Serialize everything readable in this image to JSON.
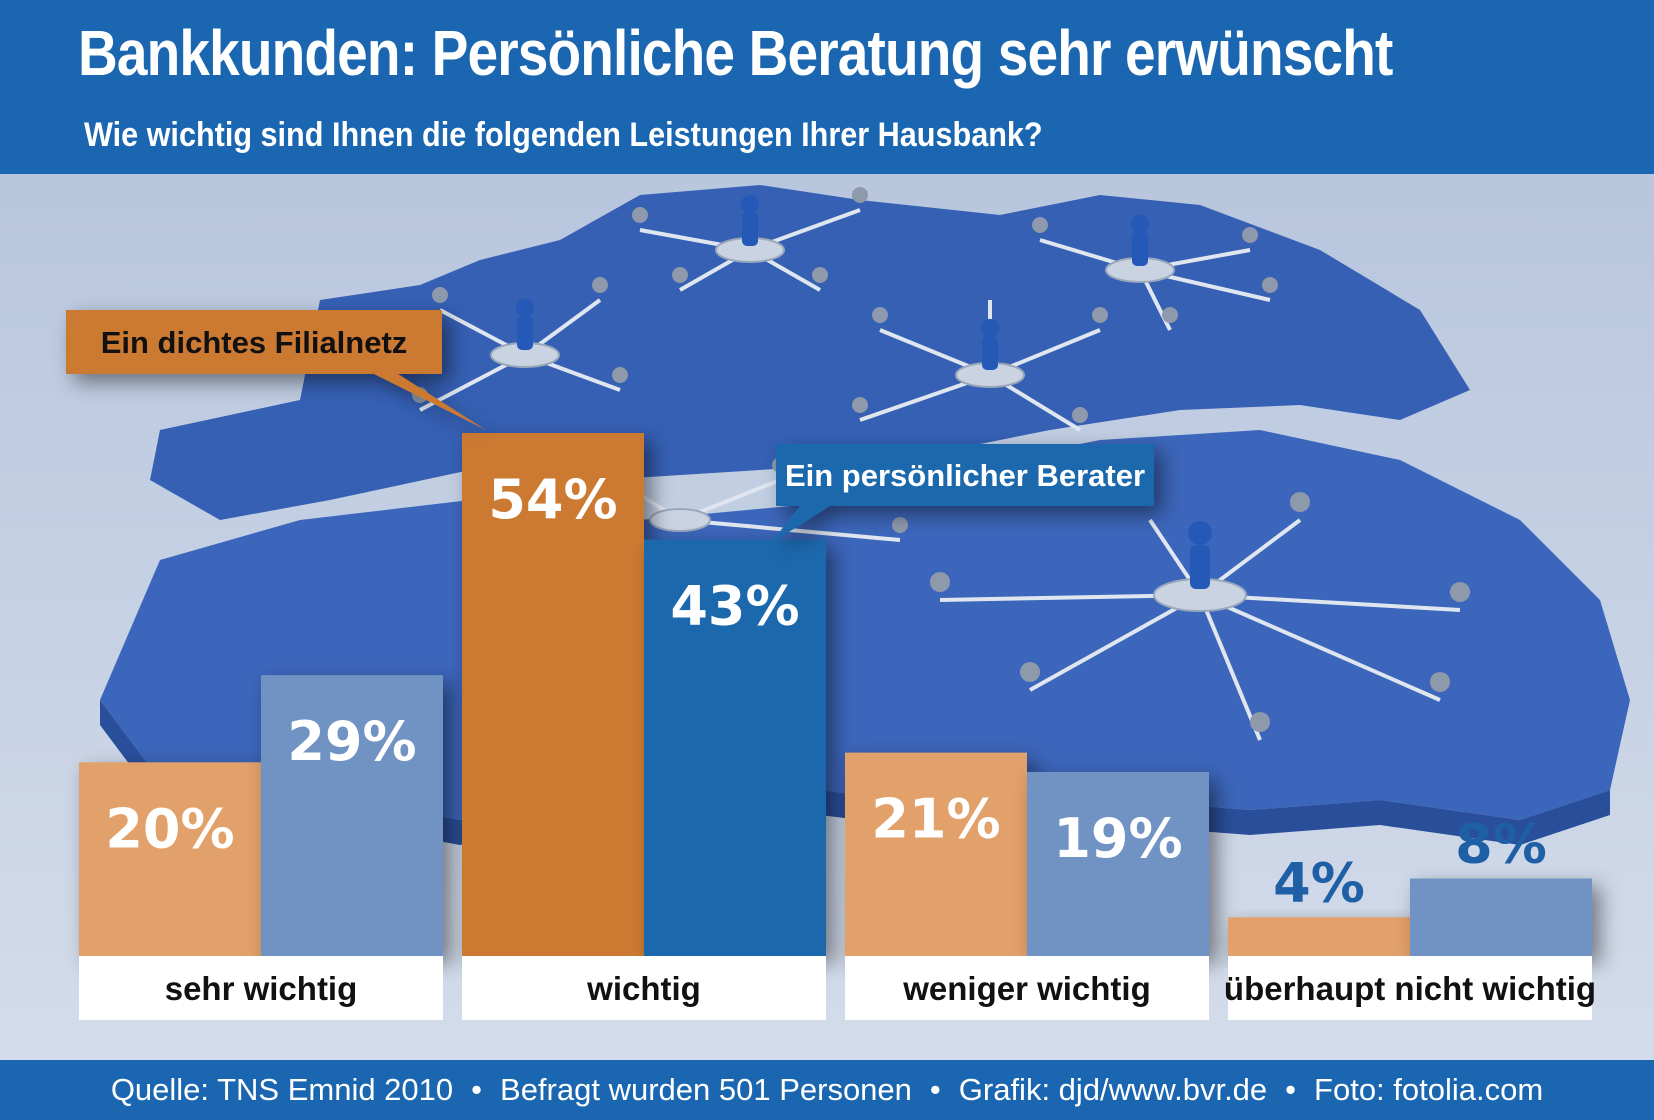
{
  "header": {
    "title": "Bankkunden: Persönliche Beratung sehr erwünscht",
    "subtitle": "Wie wichtig sind Ihnen die folgenden Leistungen Ihrer Hausbank?"
  },
  "footer": {
    "source": "Quelle: TNS Emnid 2010",
    "respondents": "Befragt wurden 501 Personen",
    "graphic": "Grafik: djd/www.bvr.de",
    "photo": "Foto: fotolia.com"
  },
  "colors": {
    "header_blue": "#1b66b0",
    "orange_strong": "#cc7a30",
    "orange_light": "#e2a06a",
    "blue_strong": "#1e68ad",
    "blue_light": "#6f93c4",
    "value_blue_text": "#1e5fa6",
    "map_blue": "#3d64b9"
  },
  "chart_data": {
    "type": "bar",
    "categories": [
      "sehr wichtig",
      "wichtig",
      "weniger wichtig",
      "überhaupt nicht wichtig"
    ],
    "series": [
      {
        "name": "Ein dichtes Filialnetz",
        "values": [
          20,
          54,
          21,
          4
        ],
        "labels": [
          "20%",
          "54%",
          "21%",
          "4%"
        ]
      },
      {
        "name": "Ein persönlicher Berater",
        "values": [
          29,
          43,
          19,
          8
        ],
        "labels": [
          "29%",
          "43%",
          "19%",
          "8%"
        ]
      }
    ],
    "legend": "callouts",
    "ylim": [
      0,
      54
    ]
  }
}
